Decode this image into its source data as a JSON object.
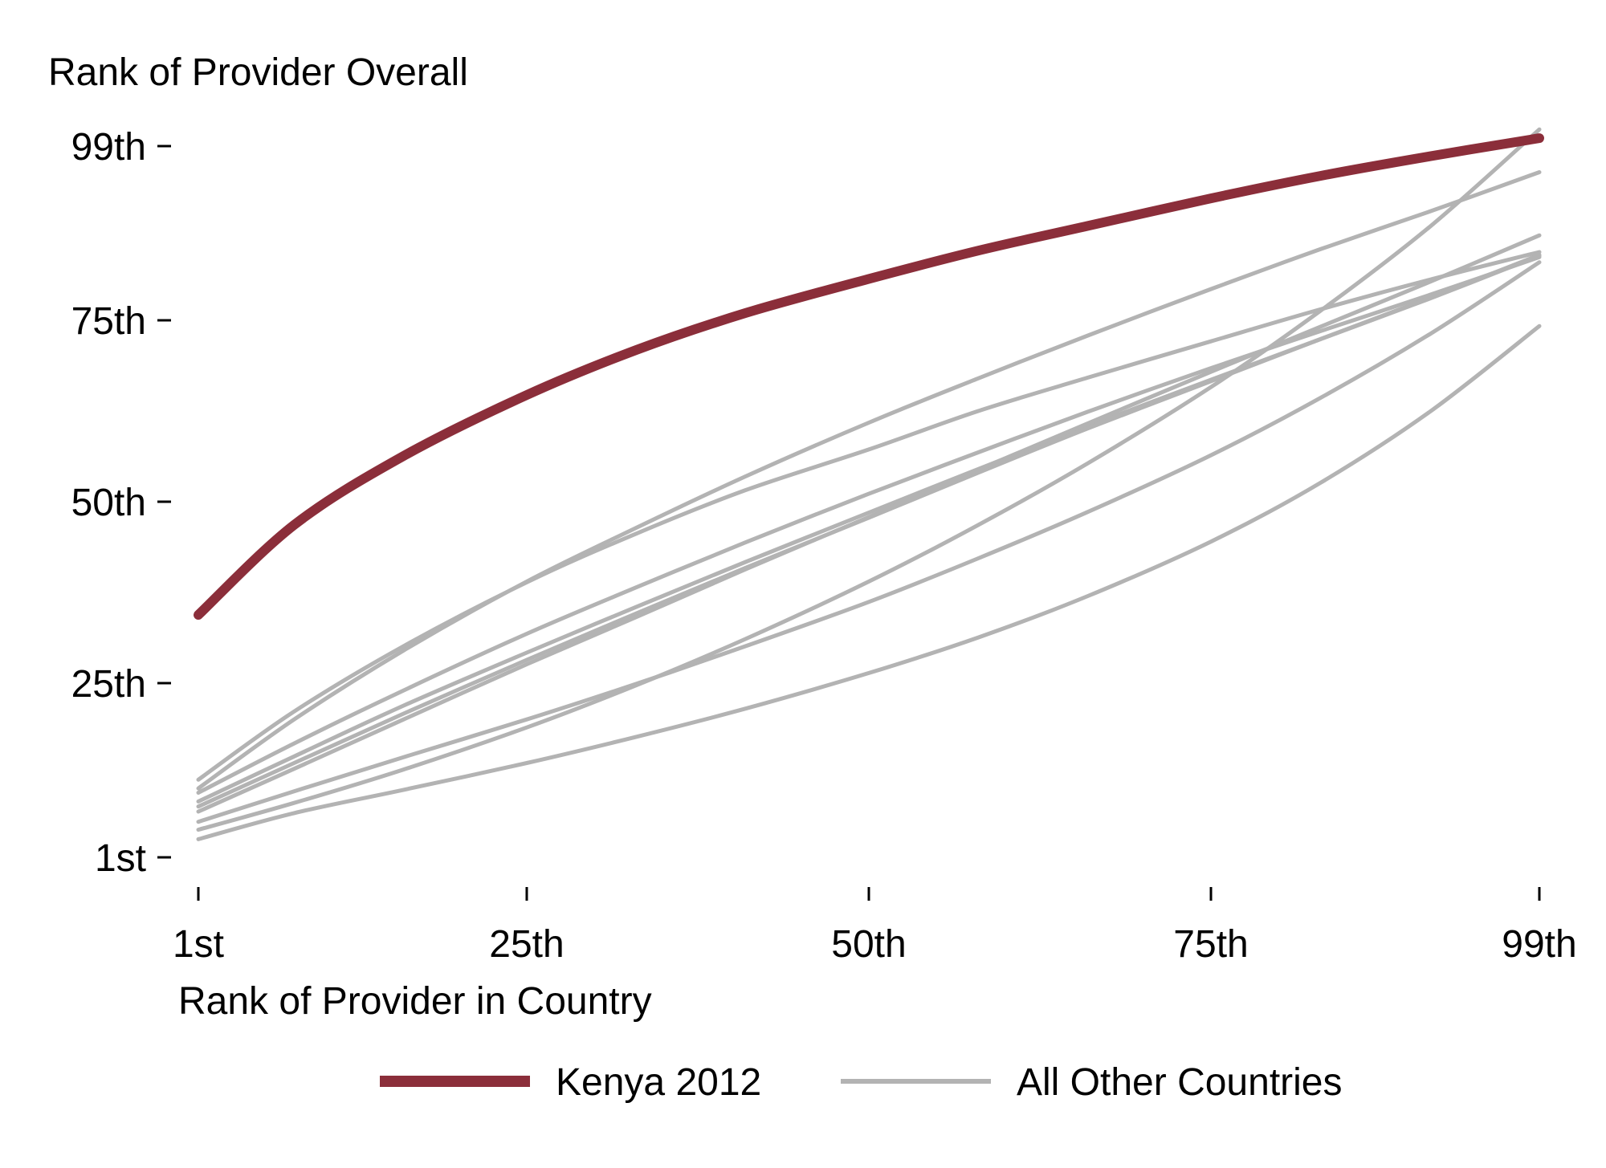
{
  "chart_data": {
    "type": "line",
    "y_title": "Rank of Provider Overall",
    "xlabel": "Rank of Provider in Country",
    "x_ticks": [
      {
        "value": 1,
        "label": "1st"
      },
      {
        "value": 25,
        "label": "25th"
      },
      {
        "value": 50,
        "label": "50th"
      },
      {
        "value": 75,
        "label": "75th"
      },
      {
        "value": 99,
        "label": "99th"
      }
    ],
    "y_ticks": [
      {
        "value": 1,
        "label": "1st"
      },
      {
        "value": 25,
        "label": "25th"
      },
      {
        "value": 50,
        "label": "50th"
      },
      {
        "value": 75,
        "label": "75th"
      },
      {
        "value": 99,
        "label": "99th"
      }
    ],
    "xlim": [
      1,
      99
    ],
    "ylim": [
      1,
      99
    ],
    "grid": false,
    "legend_position": "bottom",
    "x": [
      1,
      8,
      16,
      25,
      33,
      41,
      50,
      58,
      66,
      75,
      83,
      91,
      99
    ],
    "series": [
      {
        "name": "Kenya 2012",
        "color": "#8b2e3a",
        "highlight": true,
        "values": [
          34.4,
          46.8,
          56.3,
          64.7,
          70.9,
          76.0,
          80.7,
          84.6,
          88.0,
          91.8,
          94.9,
          97.6,
          100.1
        ]
      },
      {
        "group": "other",
        "color": "#b3b3b3",
        "values": [
          11.7,
          21.1,
          30.1,
          38.9,
          45.6,
          51.6,
          57.2,
          62.5,
          67.1,
          72.1,
          76.5,
          80.6,
          84.4
        ]
      },
      {
        "group": "other",
        "color": "#b3b3b3",
        "values": [
          10.5,
          20.0,
          29.5,
          39.0,
          46.4,
          53.5,
          60.9,
          67.0,
          72.9,
          79.3,
          84.8,
          90.0,
          95.4
        ]
      },
      {
        "group": "other",
        "color": "#b3b3b3",
        "values": [
          9.9,
          16.7,
          24.0,
          31.8,
          38.2,
          44.4,
          51.1,
          56.8,
          62.4,
          68.4,
          73.5,
          78.5,
          83.7
        ]
      },
      {
        "group": "other",
        "color": "#b3b3b3",
        "values": [
          8.7,
          14.9,
          21.9,
          29.2,
          35.5,
          41.7,
          48.5,
          54.5,
          60.4,
          66.8,
          72.4,
          78.0,
          83.9
        ]
      },
      {
        "group": "other",
        "color": "#b3b3b3",
        "values": [
          8.0,
          14.0,
          20.8,
          28.2,
          34.6,
          40.9,
          47.8,
          54.0,
          60.1,
          66.6,
          72.4,
          78.1,
          84.0
        ]
      },
      {
        "group": "other",
        "color": "#b3b3b3",
        "values": [
          7.3,
          13.2,
          20.0,
          27.6,
          34.1,
          40.7,
          47.9,
          54.4,
          60.8,
          67.9,
          74.1,
          80.3,
          86.7
        ]
      },
      {
        "group": "other",
        "color": "#b3b3b3",
        "values": [
          5.9,
          10.1,
          14.8,
          20.0,
          24.9,
          30.1,
          36.2,
          42.2,
          48.6,
          56.4,
          64.3,
          73.1,
          83.0
        ]
      },
      {
        "group": "other",
        "color": "#b3b3b3",
        "values": [
          4.8,
          8.5,
          13.1,
          18.9,
          24.7,
          31.1,
          39.0,
          46.8,
          55.3,
          65.8,
          76.3,
          87.9,
          101.3
        ]
      },
      {
        "group": "other",
        "color": "#b3b3b3",
        "values": [
          3.5,
          7.1,
          10.3,
          14.0,
          17.6,
          21.5,
          26.4,
          31.3,
          37.0,
          44.5,
          52.6,
          62.4,
          74.2
        ]
      }
    ]
  },
  "legend": {
    "items": [
      {
        "label": "Kenya 2012",
        "color": "#8b2e3a"
      },
      {
        "label": "All Other Countries",
        "color": "#b3b3b3"
      }
    ]
  }
}
